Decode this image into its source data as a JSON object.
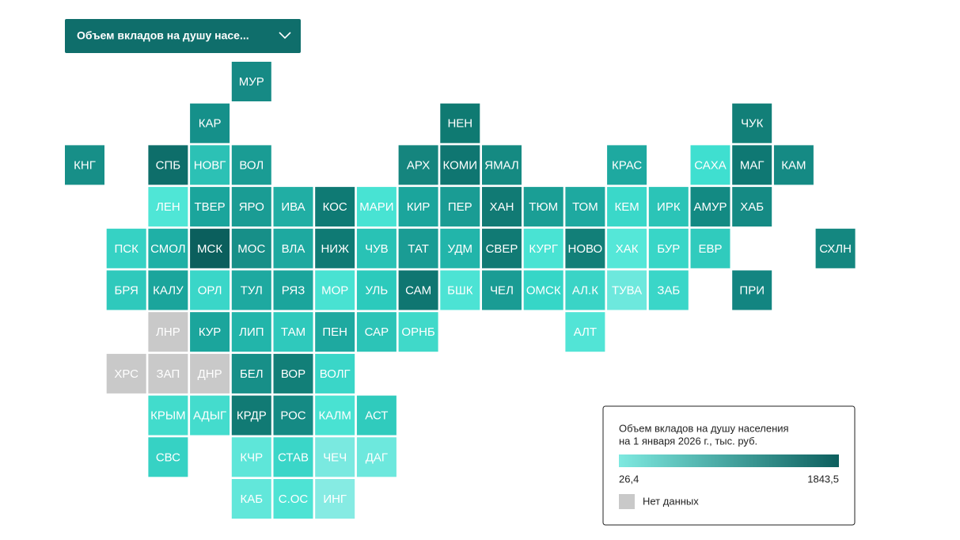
{
  "dropdown": {
    "label": "Объем вкладов на душу насе..."
  },
  "legend": {
    "title_lines": [
      "Объем вкладов на душу населения",
      "на 1 января 2026 г., тыс. руб."
    ],
    "min_label": "26,4",
    "max_label": "1843,5",
    "colors": [
      "#7ee9e0",
      "#0d5f5e"
    ],
    "no_data": {
      "label": "Нет данных",
      "color": "#c9c9c9"
    }
  },
  "tiles": [
    {
      "label": "МУР",
      "color": "#168a85"
    },
    {
      "label": "КАР",
      "color": "#15908a"
    },
    {
      "label": "НЕН",
      "color": "#0f7a72"
    },
    {
      "label": "ЧУК",
      "color": "#127f78"
    },
    {
      "label": "КНГ",
      "color": "#178f88"
    },
    {
      "label": "СПБ",
      "color": "#0e6e6a"
    },
    {
      "label": "НОВГ",
      "color": "#2cc1b5"
    },
    {
      "label": "ВОЛ",
      "color": "#1a9c94"
    },
    {
      "label": "АРХ",
      "color": "#15857e"
    },
    {
      "label": "КОМИ",
      "color": "#0f7671"
    },
    {
      "label": "ЯМАЛ",
      "color": "#158a82"
    },
    {
      "label": "КРАС",
      "color": "#1ea9a0"
    },
    {
      "label": "САХА",
      "color": "#3fdfd0"
    },
    {
      "label": "МАГ",
      "color": "#0f7873"
    },
    {
      "label": "КАМ",
      "color": "#158a84"
    },
    {
      "label": "ЛЕН",
      "color": "#4fe6d6"
    },
    {
      "label": "ТВЕР",
      "color": "#1ba59c"
    },
    {
      "label": "ЯРО",
      "color": "#1a9c94"
    },
    {
      "label": "ИВА",
      "color": "#21aea4"
    },
    {
      "label": "КОС",
      "color": "#0f7a74"
    },
    {
      "label": "МАРИ",
      "color": "#48e3d3"
    },
    {
      "label": "КИР",
      "color": "#1ba59c"
    },
    {
      "label": "ПЕР",
      "color": "#1a9c94"
    },
    {
      "label": "ХАН",
      "color": "#117a74"
    },
    {
      "label": "ТЮМ",
      "color": "#1a9e95"
    },
    {
      "label": "ТОМ",
      "color": "#1ea9a0"
    },
    {
      "label": "КЕМ",
      "color": "#3ad8c9"
    },
    {
      "label": "ИРК",
      "color": "#2bc4b7"
    },
    {
      "label": "АМУР",
      "color": "#138a83"
    },
    {
      "label": "ХАБ",
      "color": "#158a84"
    },
    {
      "label": "ПСК",
      "color": "#36d2c4"
    },
    {
      "label": "СМОЛ",
      "color": "#1fb0a6"
    },
    {
      "label": "МСК",
      "color": "#0b5f5d"
    },
    {
      "label": "МОС",
      "color": "#178f88"
    },
    {
      "label": "ВЛА",
      "color": "#1ea9a0"
    },
    {
      "label": "НИЖ",
      "color": "#0f7a74"
    },
    {
      "label": "ЧУВ",
      "color": "#29c2b5"
    },
    {
      "label": "ТАТ",
      "color": "#1a9c94"
    },
    {
      "label": "УДМ",
      "color": "#22b5aa"
    },
    {
      "label": "СВЕР",
      "color": "#117a74"
    },
    {
      "label": "КУРГ",
      "color": "#49e3d3"
    },
    {
      "label": "НОВО",
      "color": "#127f78"
    },
    {
      "label": "ХАК",
      "color": "#55e7d8"
    },
    {
      "label": "БУР",
      "color": "#38d6c7"
    },
    {
      "label": "ЕВР",
      "color": "#30cbbd"
    },
    {
      "label": "СХЛН",
      "color": "#148780"
    },
    {
      "label": "БРЯ",
      "color": "#2fc9bc"
    },
    {
      "label": "КАЛУ",
      "color": "#1ba59c"
    },
    {
      "label": "ОРЛ",
      "color": "#3ad6c8"
    },
    {
      "label": "ТУЛ",
      "color": "#1ea9a0"
    },
    {
      "label": "РЯЗ",
      "color": "#1ba59c"
    },
    {
      "label": "МОР",
      "color": "#49e2d2"
    },
    {
      "label": "УЛЬ",
      "color": "#2ccabc"
    },
    {
      "label": "САМ",
      "color": "#0f7671"
    },
    {
      "label": "БШК",
      "color": "#4ce3d4"
    },
    {
      "label": "ЧЕЛ",
      "color": "#1a9c94"
    },
    {
      "label": "ОМСК",
      "color": "#36d6c7"
    },
    {
      "label": "АЛ.К",
      "color": "#3ad4c6"
    },
    {
      "label": "ТУВА",
      "color": "#6de8dd"
    },
    {
      "label": "ЗАБ",
      "color": "#3ad6c8"
    },
    {
      "label": "ПРИ",
      "color": "#138581"
    },
    {
      "label": "ЛНР",
      "color": "#c9c9c9"
    },
    {
      "label": "КУР",
      "color": "#1ba59c"
    },
    {
      "label": "ЛИП",
      "color": "#22b5aa"
    },
    {
      "label": "ТАМ",
      "color": "#2fc9bc"
    },
    {
      "label": "ПЕН",
      "color": "#1ea9a0"
    },
    {
      "label": "САР",
      "color": "#2cc4b7"
    },
    {
      "label": "ОРНБ",
      "color": "#40d9c9"
    },
    {
      "label": "АЛТ",
      "color": "#52e4d6"
    },
    {
      "label": "ХРС",
      "color": "#c9c9c9"
    },
    {
      "label": "ЗАП",
      "color": "#c9c9c9"
    },
    {
      "label": "ДНР",
      "color": "#c9c9c9"
    },
    {
      "label": "БЕЛ",
      "color": "#178f88"
    },
    {
      "label": "ВОР",
      "color": "#127f78"
    },
    {
      "label": "ВОЛГ",
      "color": "#3ad6c8"
    },
    {
      "label": "КРЫМ",
      "color": "#42dccc"
    },
    {
      "label": "АДЫГ",
      "color": "#44dccd"
    },
    {
      "label": "КРДР",
      "color": "#117a74"
    },
    {
      "label": "РОС",
      "color": "#158a84"
    },
    {
      "label": "КАЛМ",
      "color": "#49e2d2"
    },
    {
      "label": "АСТ",
      "color": "#30cbbd"
    },
    {
      "label": "СВС",
      "color": "#36d2c4"
    },
    {
      "label": "КЧР",
      "color": "#5ee6d9"
    },
    {
      "label": "СТАВ",
      "color": "#3ad6c8"
    },
    {
      "label": "ЧЕЧ",
      "color": "#7ae9e0"
    },
    {
      "label": "ДАГ",
      "color": "#6de8dd"
    },
    {
      "label": "КАБ",
      "color": "#62e7da"
    },
    {
      "label": "С.ОС",
      "color": "#4ee3d4"
    },
    {
      "label": "ИНГ",
      "color": "#86ebe3"
    }
  ]
}
